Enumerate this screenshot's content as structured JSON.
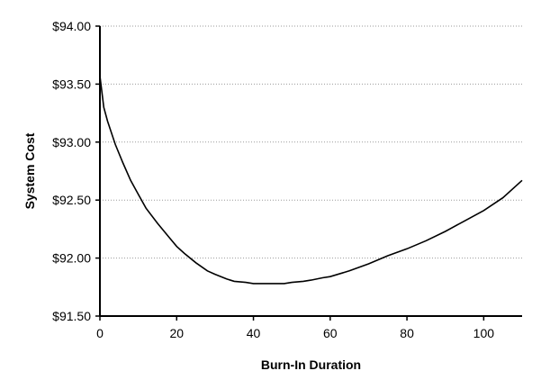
{
  "chart_data": {
    "type": "line",
    "xlabel": "Burn-In Duration",
    "ylabel": "System Cost",
    "xlim": [
      0,
      110
    ],
    "ylim": [
      91.5,
      94.0
    ],
    "x_ticks": [
      0,
      20,
      40,
      60,
      80,
      100
    ],
    "y_ticks": [
      91.5,
      92.0,
      92.5,
      93.0,
      93.5,
      94.0
    ],
    "x_tick_labels": [
      "0",
      "20",
      "40",
      "60",
      "80",
      "100"
    ],
    "y_tick_labels": [
      "$91.50",
      "$92.00",
      "$92.50",
      "$93.00",
      "$93.50",
      "$94.00"
    ],
    "grid": "horizontal dotted",
    "colors": {
      "line": "#000000",
      "grid": "#9a9a9a",
      "axis": "#000000"
    },
    "series": [
      {
        "x": [
          0,
          1,
          2,
          4,
          6,
          8,
          10,
          12,
          15,
          18,
          20,
          22,
          25,
          28,
          30,
          33,
          35,
          38,
          40,
          43,
          45,
          48,
          50,
          53,
          55,
          58,
          60,
          65,
          70,
          75,
          80,
          85,
          90,
          95,
          100,
          105,
          110
        ],
        "y": [
          93.57,
          93.3,
          93.18,
          92.98,
          92.82,
          92.67,
          92.55,
          92.43,
          92.3,
          92.18,
          92.1,
          92.04,
          91.96,
          91.89,
          91.86,
          91.82,
          91.8,
          91.79,
          91.78,
          91.78,
          91.78,
          91.78,
          91.79,
          91.8,
          91.81,
          91.83,
          91.84,
          91.89,
          91.95,
          92.02,
          92.08,
          92.15,
          92.23,
          92.32,
          92.41,
          92.52,
          92.67
        ]
      }
    ]
  }
}
